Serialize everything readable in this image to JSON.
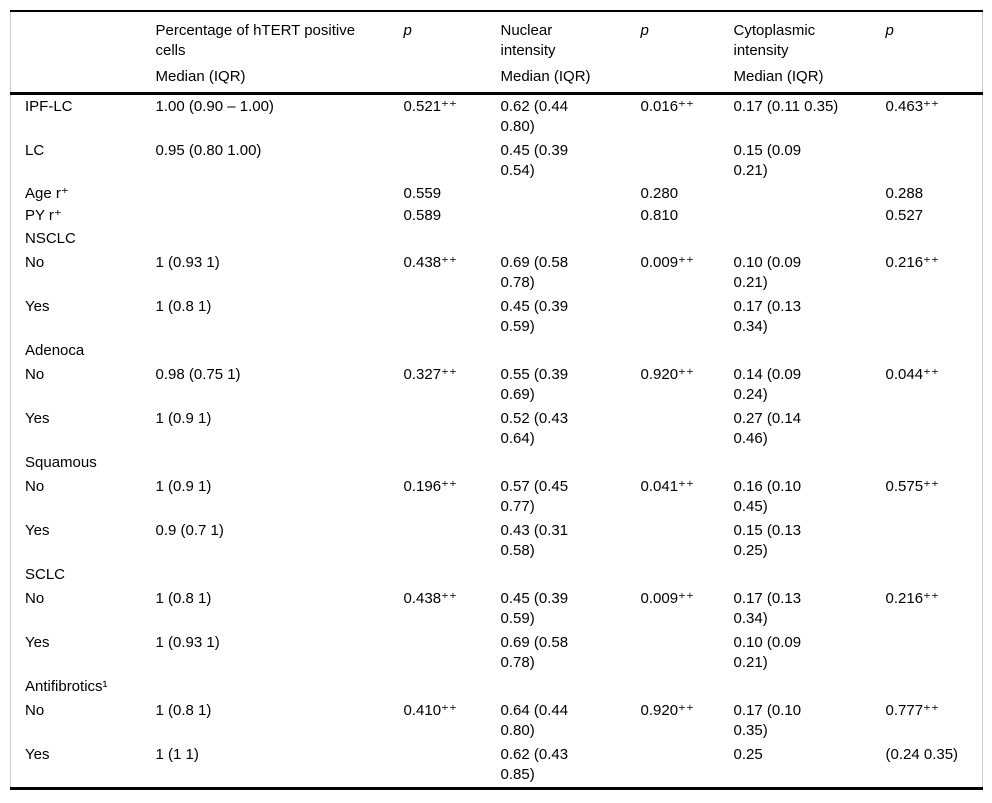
{
  "table": {
    "header": {
      "col1_title": "",
      "col2_title": "Percentage of hTERT positive cells",
      "col2_sub": "Median (IQR)",
      "p1": "p",
      "col4_title": "Nuclear intensity",
      "col4_sub": "Median (IQR)",
      "p2": "p",
      "col6_title": "Cytoplasmic intensity",
      "col6_sub": "Median (IQR)",
      "p3": "p"
    },
    "rows": [
      {
        "section": false,
        "tall": true,
        "cells": [
          "IPF-LC",
          "1.00 (0.90 – 1.00)",
          "0.521⁺⁺",
          "0.62 (0.44 0.80)",
          "0.016⁺⁺",
          "0.17 (0.11 0.35)",
          "0.463⁺⁺"
        ]
      },
      {
        "section": false,
        "tall": true,
        "cells": [
          "LC",
          "0.95 (0.80 1.00)",
          "",
          "0.45 (0.39 0.54)",
          "",
          "0.15 (0.09 0.21)",
          ""
        ]
      },
      {
        "section": false,
        "tall": false,
        "cells": [
          "Age r⁺",
          "",
          "0.559",
          "",
          "0.280",
          "",
          "0.288"
        ]
      },
      {
        "section": false,
        "tall": false,
        "cells": [
          "PY r⁺",
          "",
          "0.589",
          "",
          "0.810",
          "",
          "0.527"
        ]
      },
      {
        "section": true,
        "tall": false,
        "cells": [
          "NSCLC",
          "",
          "",
          "",
          "",
          "",
          ""
        ]
      },
      {
        "section": false,
        "tall": true,
        "cells": [
          "No",
          "1 (0.93 1)",
          "0.438⁺⁺",
          "0.69 (0.58 0.78)",
          "0.009⁺⁺",
          "0.10 (0.09 0.21)",
          "0.216⁺⁺"
        ]
      },
      {
        "section": false,
        "tall": true,
        "cells": [
          "Yes",
          "1 (0.8 1)",
          "",
          "0.45 (0.39 0.59)",
          "",
          "0.17 (0.13 0.34)",
          ""
        ]
      },
      {
        "section": true,
        "tall": false,
        "cells": [
          "Adenoca",
          "",
          "",
          "",
          "",
          "",
          ""
        ]
      },
      {
        "section": false,
        "tall": true,
        "cells": [
          "No",
          "0.98 (0.75 1)",
          "0.327⁺⁺",
          "0.55 (0.39 0.69)",
          "0.920⁺⁺",
          "0.14 (0.09 0.24)",
          "0.044⁺⁺"
        ]
      },
      {
        "section": false,
        "tall": true,
        "cells": [
          "Yes",
          "1 (0.9 1)",
          "",
          "0.52 (0.43 0.64)",
          "",
          "0.27 (0.14 0.46)",
          ""
        ]
      },
      {
        "section": true,
        "tall": false,
        "cells": [
          "Squamous",
          "",
          "",
          "",
          "",
          "",
          ""
        ]
      },
      {
        "section": false,
        "tall": true,
        "cells": [
          "No",
          "1 (0.9 1)",
          "0.196⁺⁺",
          "0.57 (0.45 0.77)",
          "0.041⁺⁺",
          "0.16 (0.10 0.45)",
          "0.575⁺⁺"
        ]
      },
      {
        "section": false,
        "tall": true,
        "cells": [
          "Yes",
          "0.9 (0.7 1)",
          "",
          "0.43 (0.31 0.58)",
          "",
          "0.15 (0.13 0.25)",
          ""
        ]
      },
      {
        "section": true,
        "tall": false,
        "cells": [
          "SCLC",
          "",
          "",
          "",
          "",
          "",
          ""
        ]
      },
      {
        "section": false,
        "tall": true,
        "cells": [
          "No",
          "1 (0.8 1)",
          "0.438⁺⁺",
          "0.45 (0.39 0.59)",
          "0.009⁺⁺",
          "0.17 (0.13 0.34)",
          "0.216⁺⁺"
        ]
      },
      {
        "section": false,
        "tall": true,
        "cells": [
          "Yes",
          "1 (0.93 1)",
          "",
          "0.69 (0.58 0.78)",
          "",
          "0.10 (0.09 0.21)",
          ""
        ]
      },
      {
        "section": true,
        "tall": false,
        "cells": [
          "Antifibrotics¹",
          "",
          "",
          "",
          "",
          "",
          ""
        ]
      },
      {
        "section": false,
        "tall": true,
        "cells": [
          "No",
          "1 (0.8 1)",
          "0.410⁺⁺",
          "0.64 (0.44 0.80)",
          "0.920⁺⁺",
          "0.17 (0.10 0.35)",
          "0.777⁺⁺"
        ]
      },
      {
        "section": false,
        "tall": true,
        "cells": [
          "Yes",
          "1 (1 1)",
          "",
          "0.62 (0.43 0.85)",
          "",
          "0.25",
          "(0.24 0.35)"
        ]
      }
    ]
  }
}
